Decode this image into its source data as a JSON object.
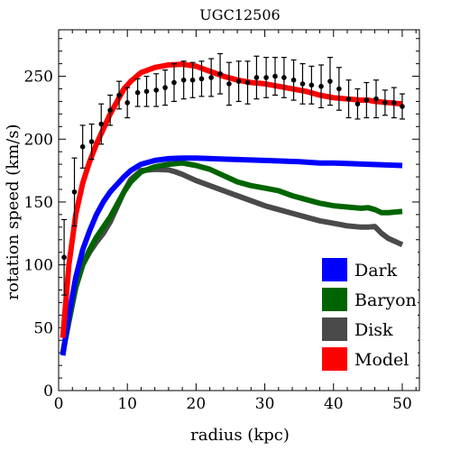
{
  "chart_data": {
    "type": "line",
    "title": "UGC12506",
    "xlabel": "radius (kpc)",
    "ylabel": "rotation speed (km/s)",
    "xlim": [
      0,
      52.5
    ],
    "ylim": [
      0,
      287
    ],
    "xticks": [
      0,
      10,
      20,
      30,
      40,
      50
    ],
    "yticks": [
      0,
      50,
      100,
      150,
      200,
      250
    ],
    "grid": false,
    "legend_position": "bottom-right",
    "series": [
      {
        "name": "Dark",
        "color": "#0000ff",
        "x": [
          0.6,
          1.5,
          2.5,
          3.5,
          4.5,
          5.5,
          6.5,
          7.5,
          8.5,
          9.5,
          10.5,
          12,
          14,
          16,
          18,
          20,
          25,
          30,
          35,
          38,
          40,
          45,
          50
        ],
        "y": [
          28,
          60,
          90,
          112,
          127,
          140,
          150,
          158,
          164,
          170,
          175,
          180,
          183,
          184.5,
          185,
          185,
          184,
          183,
          182,
          181,
          181,
          180,
          179
        ]
      },
      {
        "name": "Baryon",
        "color": "#006400",
        "x": [
          0.6,
          1.5,
          2.5,
          3.5,
          4.5,
          5.5,
          6.5,
          7.5,
          8.5,
          9.5,
          10.5,
          12,
          14,
          16,
          18,
          20,
          22,
          24,
          26,
          28,
          30,
          32,
          34,
          36,
          38,
          40,
          42,
          44,
          45,
          46,
          47,
          48,
          50
        ],
        "y": [
          30,
          55,
          82,
          100,
          112,
          122,
          130,
          138,
          148,
          158,
          166,
          174,
          178,
          180,
          181,
          179,
          176,
          171,
          166,
          163,
          161,
          159,
          155,
          152,
          149,
          147,
          146,
          145,
          145.5,
          144,
          141.5,
          141.5,
          142.5
        ]
      },
      {
        "name": "Disk",
        "color": "#4a4a4a",
        "x": [
          0.6,
          1.5,
          2.5,
          3.5,
          4.5,
          5.5,
          6.5,
          7.5,
          8.5,
          9.5,
          10.5,
          12,
          14,
          16,
          17,
          18,
          20,
          22,
          24,
          26,
          28,
          30,
          32,
          34,
          36,
          38,
          40,
          42,
          44,
          45,
          46,
          47,
          48,
          50
        ],
        "y": [
          30,
          55,
          82,
          100,
          110,
          118,
          125,
          134,
          146,
          158,
          168,
          175,
          176,
          175.5,
          174,
          172,
          167,
          163,
          159,
          155,
          151,
          147,
          144,
          141,
          138,
          135,
          133,
          131,
          130,
          130,
          130.5,
          125,
          121,
          116
        ]
      },
      {
        "name": "Model",
        "color": "#ff0000",
        "x": [
          0.6,
          1.5,
          2.5,
          3.5,
          4.5,
          5.5,
          6.5,
          7.5,
          8.5,
          9.5,
          10.5,
          12,
          14,
          16,
          18,
          20,
          22,
          24,
          26,
          28,
          30,
          32,
          34,
          36,
          38,
          40,
          42,
          44,
          45,
          46,
          48,
          50
        ],
        "y": [
          42,
          100,
          140,
          165,
          182,
          196,
          208,
          220,
          230,
          240,
          246,
          253,
          257,
          259,
          259.5,
          258,
          254,
          250,
          247,
          245,
          244,
          242,
          240,
          238,
          235,
          233,
          232,
          231,
          231,
          230,
          229,
          228
        ]
      },
      {
        "name": "data",
        "type": "errorbar",
        "color": "#000000",
        "x": [
          0.8,
          2.3,
          3.5,
          4.8,
          6.2,
          7.5,
          8.8,
          10,
          11.5,
          12.8,
          14.2,
          15.5,
          16.8,
          18.2,
          19.5,
          20.8,
          22.2,
          23.5,
          24.8,
          26.2,
          27.5,
          28.8,
          30.2,
          31.5,
          32.8,
          34.2,
          35.5,
          36.8,
          38.2,
          39.5,
          40.8,
          42.2,
          43.5,
          44.8,
          46.2,
          47.5,
          48.8,
          50
        ],
        "y": [
          106,
          158,
          194,
          198,
          212,
          223,
          235,
          229,
          237,
          238,
          239,
          241,
          245,
          247,
          247,
          248,
          249,
          252,
          244,
          246,
          245,
          249,
          249,
          250,
          249,
          247,
          244,
          243,
          242,
          246,
          240,
          232,
          228,
          231,
          232,
          229,
          229,
          226
        ],
        "err": [
          30,
          27,
          17,
          14,
          16,
          12,
          11,
          12,
          11,
          12,
          13,
          14,
          15,
          15,
          14,
          14,
          15,
          16,
          17,
          16,
          17,
          17,
          16,
          15,
          16,
          16,
          16,
          15,
          17,
          19,
          17,
          15,
          12,
          14,
          15,
          10,
          12,
          10
        ]
      }
    ]
  }
}
